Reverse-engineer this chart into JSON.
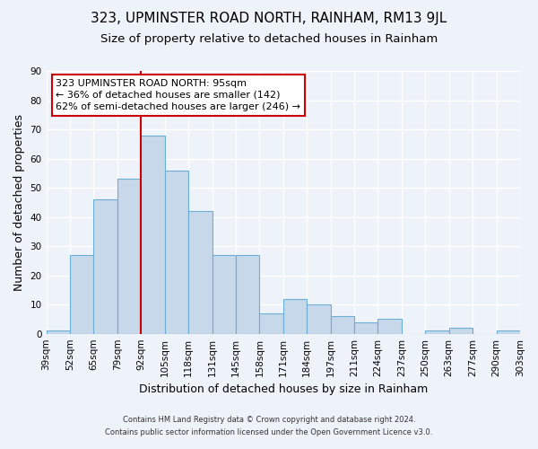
{
  "title": "323, UPMINSTER ROAD NORTH, RAINHAM, RM13 9JL",
  "subtitle": "Size of property relative to detached houses in Rainham",
  "xlabel": "Distribution of detached houses by size in Rainham",
  "ylabel": "Number of detached properties",
  "bar_labels": [
    "39sqm",
    "52sqm",
    "65sqm",
    "79sqm",
    "92sqm",
    "105sqm",
    "118sqm",
    "131sqm",
    "145sqm",
    "158sqm",
    "171sqm",
    "184sqm",
    "197sqm",
    "211sqm",
    "224sqm",
    "237sqm",
    "250sqm",
    "263sqm",
    "277sqm",
    "290sqm",
    "303sqm"
  ],
  "bar_values": [
    1,
    27,
    46,
    53,
    68,
    56,
    42,
    27,
    27,
    7,
    12,
    10,
    6,
    4,
    5,
    0,
    1,
    2,
    0,
    1
  ],
  "bar_color": "#c8d8eb",
  "bar_edge_color": "#6aaed6",
  "ylim": [
    0,
    90
  ],
  "yticks": [
    0,
    10,
    20,
    30,
    40,
    50,
    60,
    70,
    80,
    90
  ],
  "red_line_x": 4,
  "annotation_title": "323 UPMINSTER ROAD NORTH: 95sqm",
  "annotation_line1": "← 36% of detached houses are smaller (142)",
  "annotation_line2": "62% of semi-detached houses are larger (246) →",
  "footer_line1": "Contains HM Land Registry data © Crown copyright and database right 2024.",
  "footer_line2": "Contains public sector information licensed under the Open Government Licence v3.0.",
  "background_color": "#eef2f9",
  "plot_bg_color": "#eef2f9",
  "title_fontsize": 11,
  "subtitle_fontsize": 9.5,
  "axis_label_fontsize": 9,
  "tick_fontsize": 7.5,
  "annotation_fontsize": 8,
  "footer_fontsize": 6,
  "annotation_box_color": "#ffffff",
  "annotation_box_edge_color": "#cc0000",
  "red_line_color": "#cc0000"
}
